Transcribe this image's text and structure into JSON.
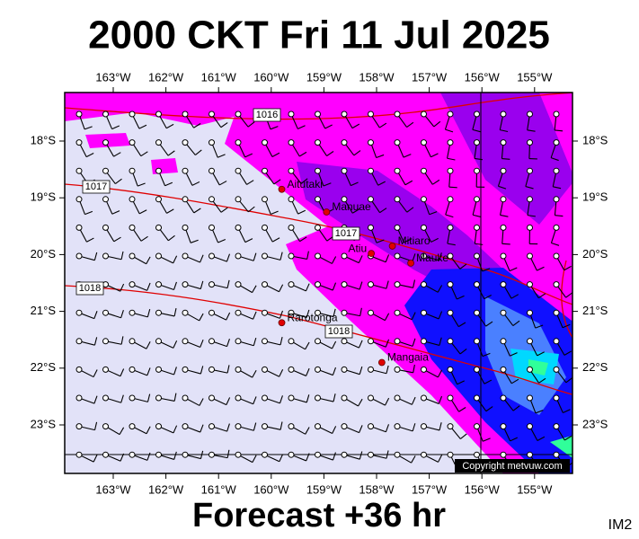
{
  "title": "2000 CKT Fri 11 Jul 2025",
  "footer": "Forecast +36 hr",
  "image_id": "IM2",
  "copyright": "Copyright metvuw.com",
  "map": {
    "lon_ticks": [
      {
        "value": -163,
        "label": "163°W"
      },
      {
        "value": -162,
        "label": "162°W"
      },
      {
        "value": -161,
        "label": "161°W"
      },
      {
        "value": -160,
        "label": "160°W"
      },
      {
        "value": -159,
        "label": "159°W"
      },
      {
        "value": -158,
        "label": "158°W"
      },
      {
        "value": -157,
        "label": "157°W"
      },
      {
        "value": -156,
        "label": "156°W"
      },
      {
        "value": -155,
        "label": "155°W"
      }
    ],
    "lat_ticks": [
      {
        "value": -18,
        "label": "18°S"
      },
      {
        "value": -19,
        "label": "19°S"
      },
      {
        "value": -20,
        "label": "20°S"
      },
      {
        "value": -21,
        "label": "21°S"
      },
      {
        "value": -22,
        "label": "22°S"
      },
      {
        "value": -23,
        "label": "23°S"
      }
    ],
    "islands": [
      {
        "name": "Aitutaki",
        "lon": -159.8,
        "lat": -18.85
      },
      {
        "name": "Manuae",
        "lon": -158.95,
        "lat": -19.25
      },
      {
        "name": "Atiu",
        "lon": -158.1,
        "lat": -19.98
      },
      {
        "name": "Mitiaro",
        "lon": -157.7,
        "lat": -19.85
      },
      {
        "name": "Mauke",
        "lon": -157.35,
        "lat": -20.15
      },
      {
        "name": "Rarotonga",
        "lon": -159.8,
        "lat": -21.2
      },
      {
        "name": "Mangaia",
        "lon": -157.9,
        "lat": -21.9
      }
    ],
    "isobar_labels": [
      1016,
      1017,
      1017,
      1018,
      1018
    ]
  }
}
